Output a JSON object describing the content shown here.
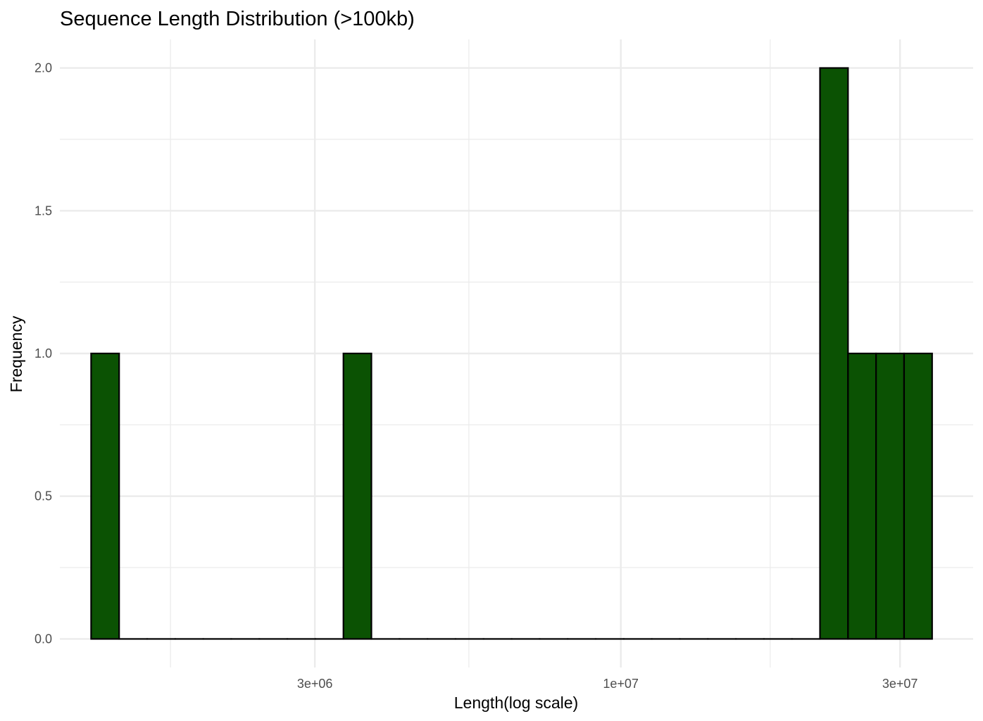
{
  "chart_data": {
    "type": "bar",
    "title": "Sequence Length Distribution (>100kb)",
    "xlabel": "Length(log scale)",
    "ylabel": "Frequency",
    "x_scale": "log10",
    "x_ticks": [
      {
        "value": 3000000,
        "label": "3e+06"
      },
      {
        "value": 10000000,
        "label": "1e+07"
      },
      {
        "value": 30000000,
        "label": "3e+07"
      }
    ],
    "x_minor_ticks": [
      1700000,
      5500000,
      18000000
    ],
    "xlim": [
      1100000,
      40000000
    ],
    "y_ticks": [
      {
        "value": 0,
        "label": "0.0"
      },
      {
        "value": 0.5,
        "label": "0.5"
      },
      {
        "value": 1,
        "label": "1.0"
      },
      {
        "value": 1.5,
        "label": "1.5"
      },
      {
        "value": 2,
        "label": "2.0"
      }
    ],
    "ylim": [
      -0.1,
      2.1
    ],
    "bin_edges": [
      1244000,
      1389000,
      1551000,
      1732000,
      1934000,
      2159000,
      2411000,
      2692000,
      3006000,
      3357000,
      3748000,
      4185000,
      4673000,
      5218000,
      5827000,
      6507000,
      7265000,
      8113000,
      9059000,
      10116000,
      11295000,
      12613000,
      14084000,
      15726000,
      17561000,
      19609000,
      21895000,
      24449000,
      27300000,
      30484000,
      34040000
    ],
    "counts": [
      1,
      0,
      0,
      0,
      0,
      0,
      0,
      0,
      0,
      1,
      0,
      0,
      0,
      0,
      0,
      0,
      0,
      0,
      0,
      0,
      0,
      0,
      0,
      0,
      0,
      0,
      2,
      1,
      1,
      1
    ],
    "bar_fill": "#0b5203",
    "bar_stroke": "#000000",
    "grid": true,
    "grid_color": "#ebebeb"
  }
}
